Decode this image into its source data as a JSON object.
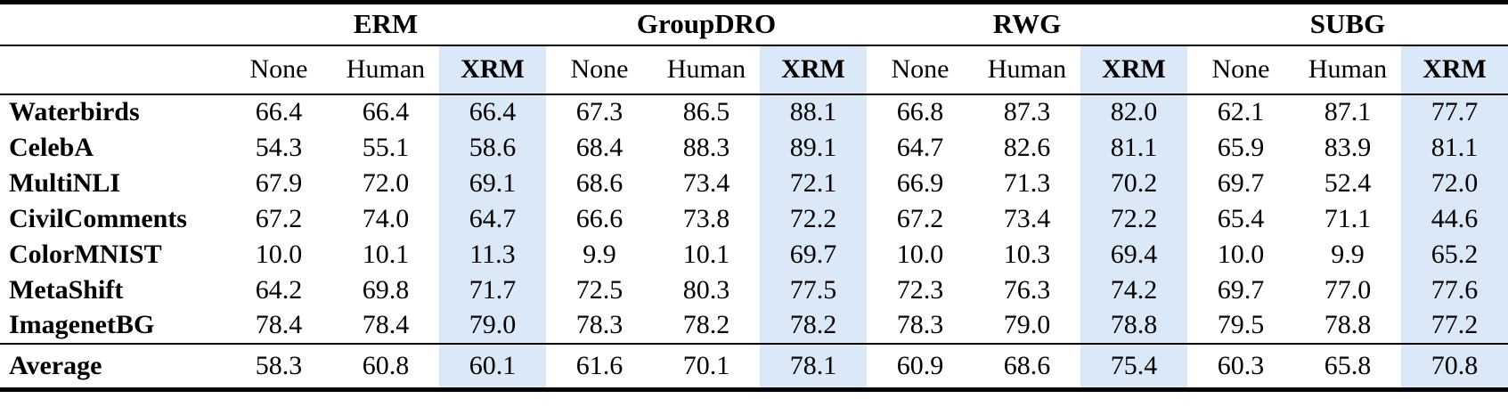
{
  "table": {
    "column_groups": [
      {
        "label": "ERM"
      },
      {
        "label": "GroupDRO"
      },
      {
        "label": "RWG"
      },
      {
        "label": "SUBG"
      }
    ],
    "sub_columns": [
      "None",
      "Human",
      "XRM"
    ],
    "highlighted_sub_column": "XRM",
    "highlight_color": "#dbe8f8",
    "rows": [
      {
        "label": "Waterbirds",
        "values": [
          "66.4",
          "66.4",
          "66.4",
          "67.3",
          "86.5",
          "88.1",
          "66.8",
          "87.3",
          "82.0",
          "62.1",
          "87.1",
          "77.7"
        ]
      },
      {
        "label": "CelebA",
        "values": [
          "54.3",
          "55.1",
          "58.6",
          "68.4",
          "88.3",
          "89.1",
          "64.7",
          "82.6",
          "81.1",
          "65.9",
          "83.9",
          "81.1"
        ]
      },
      {
        "label": "MultiNLI",
        "values": [
          "67.9",
          "72.0",
          "69.1",
          "68.6",
          "73.4",
          "72.1",
          "66.9",
          "71.3",
          "70.2",
          "69.7",
          "52.4",
          "72.0"
        ]
      },
      {
        "label": "CivilComments",
        "values": [
          "67.2",
          "74.0",
          "64.7",
          "66.6",
          "73.8",
          "72.2",
          "67.2",
          "73.4",
          "72.2",
          "65.4",
          "71.1",
          "44.6"
        ]
      },
      {
        "label": "ColorMNIST",
        "values": [
          "10.0",
          "10.1",
          "11.3",
          "9.9",
          "10.1",
          "69.7",
          "10.0",
          "10.3",
          "69.4",
          "10.0",
          "9.9",
          "65.2"
        ]
      },
      {
        "label": "MetaShift",
        "values": [
          "64.2",
          "69.8",
          "71.7",
          "72.5",
          "80.3",
          "77.5",
          "72.3",
          "76.3",
          "74.2",
          "69.7",
          "77.0",
          "77.6"
        ]
      },
      {
        "label": "ImagenetBG",
        "values": [
          "78.4",
          "78.4",
          "79.0",
          "78.3",
          "78.2",
          "78.2",
          "78.3",
          "79.0",
          "78.8",
          "79.5",
          "78.8",
          "77.2"
        ]
      }
    ],
    "footer_row": {
      "label": "Average",
      "values": [
        "58.3",
        "60.8",
        "60.1",
        "61.6",
        "70.1",
        "78.1",
        "60.9",
        "68.6",
        "75.4",
        "60.3",
        "65.8",
        "70.8"
      ]
    }
  }
}
